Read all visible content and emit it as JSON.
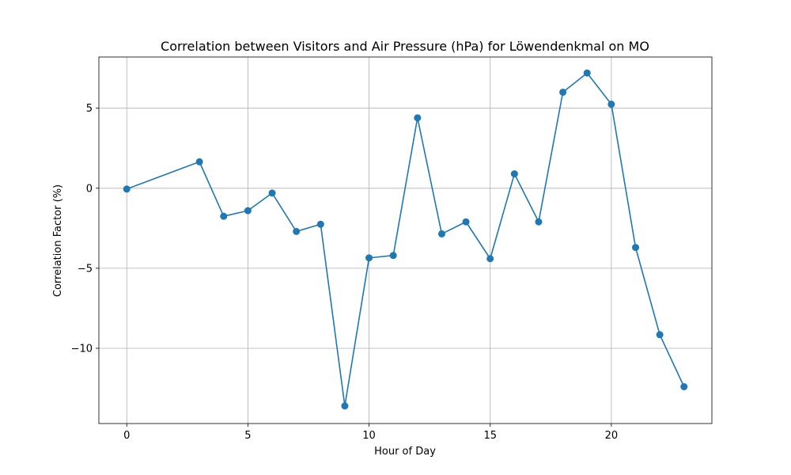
{
  "chart_data": {
    "type": "line",
    "title": "Correlation between Visitors and Air Pressure (hPa) for Löwendenkmal on MO",
    "xlabel": "Hour of Day",
    "ylabel": "Correlation Factor (%)",
    "xlim": [
      -1.15,
      24.15
    ],
    "ylim": [
      -14.7,
      8.2
    ],
    "x_ticks": [
      0,
      5,
      10,
      15,
      20
    ],
    "x_tick_labels": [
      "0",
      "5",
      "10",
      "15",
      "20"
    ],
    "y_ticks": [
      -10,
      -5,
      0,
      5
    ],
    "y_tick_labels": [
      "−10",
      "−5",
      "0",
      "5"
    ],
    "grid": true,
    "series": [
      {
        "color": "#1f77b4",
        "marker": "circle",
        "x": [
          0,
          3,
          4,
          5,
          6,
          7,
          8,
          9,
          10,
          11,
          12,
          13,
          14,
          15,
          16,
          17,
          18,
          19,
          20,
          21,
          22,
          23
        ],
        "y": [
          -0.05,
          1.65,
          -1.75,
          -1.4,
          -0.3,
          -2.7,
          -2.25,
          -13.6,
          -4.35,
          -4.2,
          4.4,
          -2.85,
          -2.1,
          -4.4,
          0.9,
          -2.1,
          6.0,
          7.2,
          5.25,
          -3.7,
          -9.15,
          -12.4
        ]
      }
    ]
  }
}
